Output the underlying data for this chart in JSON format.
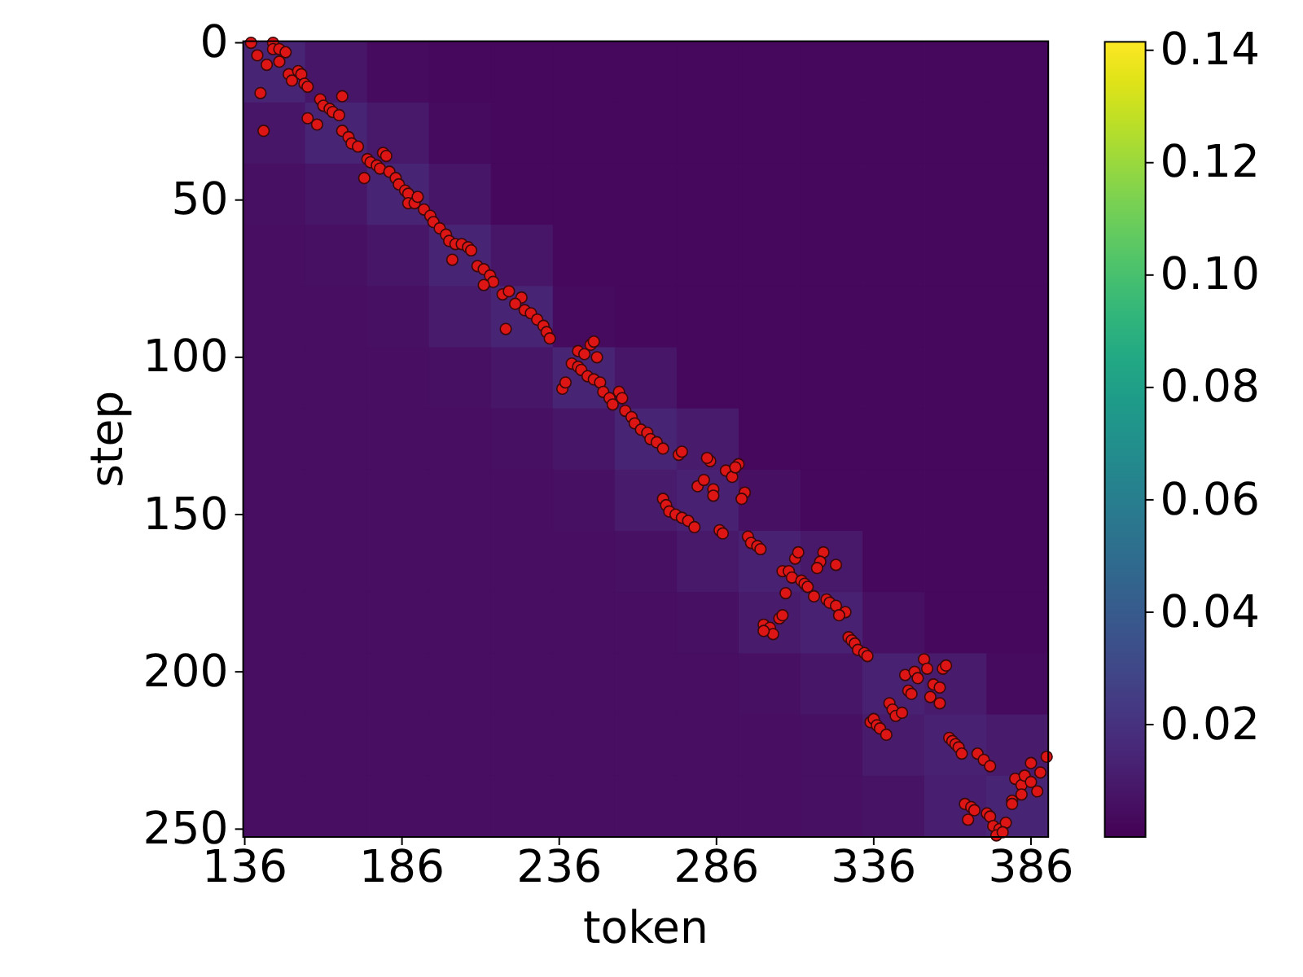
{
  "chart_data": {
    "type": "heatmap",
    "xlabel": "token",
    "ylabel": "step",
    "cells": [
      [
        0.014,
        0.008,
        0.004,
        0.003,
        0.003,
        0.003,
        0.003,
        0.003,
        0.003,
        0.003,
        0.003,
        0.003,
        0.003
      ],
      [
        0.008,
        0.014,
        0.009,
        0.004,
        0.003,
        0.003,
        0.003,
        0.003,
        0.003,
        0.003,
        0.003,
        0.003,
        0.003
      ],
      [
        0.006,
        0.008,
        0.014,
        0.008,
        0.003,
        0.003,
        0.003,
        0.003,
        0.003,
        0.003,
        0.003,
        0.003,
        0.003
      ],
      [
        0.005,
        0.006,
        0.008,
        0.014,
        0.008,
        0.003,
        0.003,
        0.003,
        0.003,
        0.003,
        0.003,
        0.003,
        0.003
      ],
      [
        0.005,
        0.005,
        0.006,
        0.01,
        0.014,
        0.004,
        0.003,
        0.003,
        0.003,
        0.003,
        0.003,
        0.003,
        0.003
      ],
      [
        0.005,
        0.005,
        0.005,
        0.006,
        0.008,
        0.014,
        0.008,
        0.003,
        0.003,
        0.003,
        0.003,
        0.003,
        0.003
      ],
      [
        0.005,
        0.005,
        0.005,
        0.005,
        0.006,
        0.008,
        0.014,
        0.01,
        0.003,
        0.003,
        0.003,
        0.003,
        0.003
      ],
      [
        0.005,
        0.005,
        0.005,
        0.005,
        0.005,
        0.006,
        0.01,
        0.013,
        0.006,
        0.003,
        0.003,
        0.003,
        0.003
      ],
      [
        0.005,
        0.005,
        0.005,
        0.005,
        0.005,
        0.005,
        0.006,
        0.009,
        0.013,
        0.009,
        0.003,
        0.003,
        0.003
      ],
      [
        0.005,
        0.005,
        0.005,
        0.005,
        0.005,
        0.005,
        0.005,
        0.006,
        0.01,
        0.013,
        0.006,
        0.003,
        0.003
      ],
      [
        0.005,
        0.005,
        0.005,
        0.005,
        0.005,
        0.005,
        0.005,
        0.005,
        0.006,
        0.008,
        0.013,
        0.01,
        0.004
      ],
      [
        0.005,
        0.005,
        0.005,
        0.005,
        0.005,
        0.005,
        0.005,
        0.005,
        0.005,
        0.006,
        0.01,
        0.013,
        0.01
      ],
      [
        0.005,
        0.005,
        0.005,
        0.005,
        0.005,
        0.005,
        0.005,
        0.005,
        0.005,
        0.006,
        0.007,
        0.012,
        0.014
      ]
    ],
    "clim": [
      0,
      0.1415
    ],
    "cticks": [
      0.02,
      0.04,
      0.06,
      0.08,
      {
        "value": 0.1,
        "label": "0.10"
      },
      0.12,
      0.14
    ],
    "xlim": [
      135.5,
      391.5
    ],
    "xticks": [
      136,
      186,
      236,
      286,
      336,
      386
    ],
    "ylim": [
      252.5,
      -0.5
    ],
    "yticks": [
      0,
      50,
      100,
      150,
      200,
      250
    ],
    "marker": "circle",
    "series": [
      {
        "type": "scatter",
        "color": "#dd1515",
        "x": [
          138,
          145,
          140,
          145,
          147,
          149,
          143,
          147,
          141,
          142,
          150,
          151,
          153,
          154,
          155,
          156,
          160,
          161,
          163,
          164,
          166,
          167,
          156,
          159,
          167,
          169,
          170,
          172,
          180,
          181,
          175,
          176,
          178,
          179,
          174,
          182,
          184,
          185,
          187,
          188,
          188,
          190,
          191,
          193,
          195,
          196,
          198,
          200,
          201,
          203,
          205,
          207,
          208,
          202,
          210,
          212,
          214,
          215,
          212,
          218,
          220,
          224,
          222,
          225,
          227,
          229,
          231,
          232,
          233,
          219,
          237,
          238,
          240,
          242,
          243,
          245,
          247,
          242,
          244,
          246,
          247,
          248,
          249,
          250,
          252,
          253,
          255,
          256,
          257,
          259,
          260,
          262,
          264,
          265,
          267,
          269,
          274,
          275,
          284,
          283,
          289,
          291,
          293,
          292,
          280,
          282,
          285,
          285,
          295,
          294,
          269,
          270,
          271,
          273,
          275,
          277,
          279,
          287,
          288,
          296,
          297,
          299,
          300,
          311,
          312,
          320,
          319,
          318,
          324,
          307,
          309,
          310,
          313,
          314,
          315,
          317,
          321,
          322,
          324,
          327,
          325,
          308,
          301,
          303,
          304,
          301,
          306,
          307,
          328,
          329,
          330,
          331,
          333,
          334,
          346,
          349,
          350,
          352,
          353,
          358,
          359,
          347,
          348,
          354,
          355,
          357,
          357,
          341,
          342,
          343,
          345,
          335,
          336,
          337,
          338,
          340,
          360,
          361,
          362,
          363,
          364,
          369,
          371,
          373,
          386,
          391,
          389,
          381,
          383,
          384,
          386,
          388,
          383,
          380,
          380,
          365,
          367,
          368,
          366,
          372,
          373,
          374,
          376,
          378,
          375,
          377
        ],
        "values": [
          0,
          0,
          4,
          2,
          2,
          3,
          7,
          6,
          16,
          28,
          10,
          12,
          9,
          10,
          13,
          14,
          18,
          20,
          21,
          22,
          23,
          17,
          24,
          26,
          28,
          30,
          32,
          33,
          35,
          36,
          37,
          38,
          39,
          40,
          43,
          41,
          43,
          45,
          47,
          48,
          51,
          51,
          49,
          53,
          55,
          57,
          59,
          61,
          63,
          64,
          64,
          65,
          66,
          69,
          71,
          72,
          74,
          76,
          77,
          80,
          79,
          81,
          83,
          85,
          86,
          88,
          90,
          92,
          94,
          91,
          110,
          108,
          102,
          103,
          104,
          106,
          107,
          98,
          99,
          96,
          95,
          100,
          108,
          111,
          113,
          115,
          111,
          113,
          117,
          119,
          121,
          123,
          124,
          126,
          127,
          129,
          131,
          130,
          133,
          132,
          136,
          138,
          134,
          135,
          141,
          139,
          142,
          144,
          143,
          145,
          145,
          147,
          149,
          150,
          151,
          152,
          154,
          155,
          156,
          157,
          159,
          160,
          161,
          164,
          162,
          162,
          165,
          167,
          166,
          168,
          168,
          170,
          171,
          172,
          173,
          176,
          177,
          178,
          179,
          181,
          182,
          175,
          185,
          186,
          188,
          187,
          183,
          182,
          189,
          190,
          191,
          193,
          194,
          195,
          201,
          200,
          202,
          196,
          199,
          199,
          198,
          206,
          207,
          208,
          204,
          205,
          210,
          210,
          212,
          214,
          213,
          216,
          215,
          217,
          218,
          220,
          221,
          222,
          223,
          224,
          226,
          226,
          228,
          230,
          229,
          227,
          232,
          234,
          236,
          233,
          235,
          238,
          239,
          241,
          242,
          242,
          243,
          244,
          247,
          245,
          246,
          249,
          250,
          248,
          252,
          251
        ]
      }
    ]
  }
}
